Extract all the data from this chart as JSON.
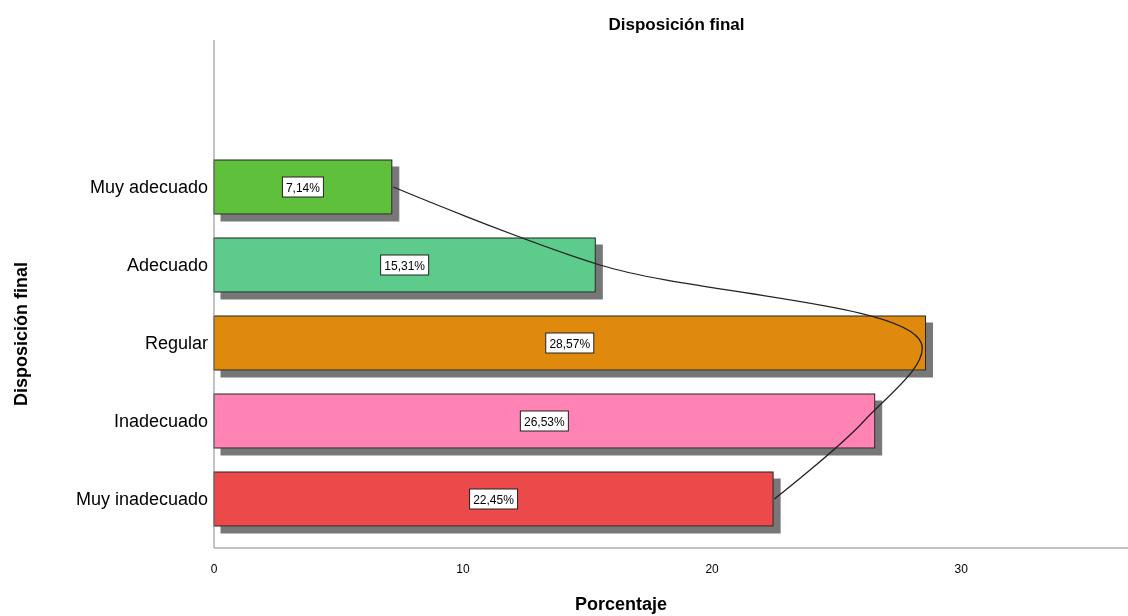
{
  "chart_data": {
    "type": "bar",
    "orientation": "horizontal",
    "title": "Disposición final",
    "xlabel": "Porcentaje",
    "ylabel": "Disposición final",
    "categories": [
      "Muy adecuado",
      "Adecuado",
      "Regular",
      "Inadecuado",
      "Muy inadecuado"
    ],
    "xlim": [
      0,
      36.7
    ],
    "xticks": [
      0,
      10,
      20,
      30
    ],
    "grid": false,
    "series": [
      {
        "values": [
          7.14,
          15.31,
          28.57,
          26.53,
          22.45
        ],
        "colors": [
          "#5fc13a",
          "#5ccb8b",
          "#e08a10",
          "#ff83b4",
          "#ec4a4c"
        ],
        "value_labels": [
          "7,14%",
          "15,31%",
          "28,57%",
          "26,53%",
          "22,45%"
        ]
      },
      {
        "type": "line",
        "color": "#222222",
        "values": [
          7.2,
          15.5,
          28.4,
          26.1,
          22.5
        ]
      }
    ]
  }
}
